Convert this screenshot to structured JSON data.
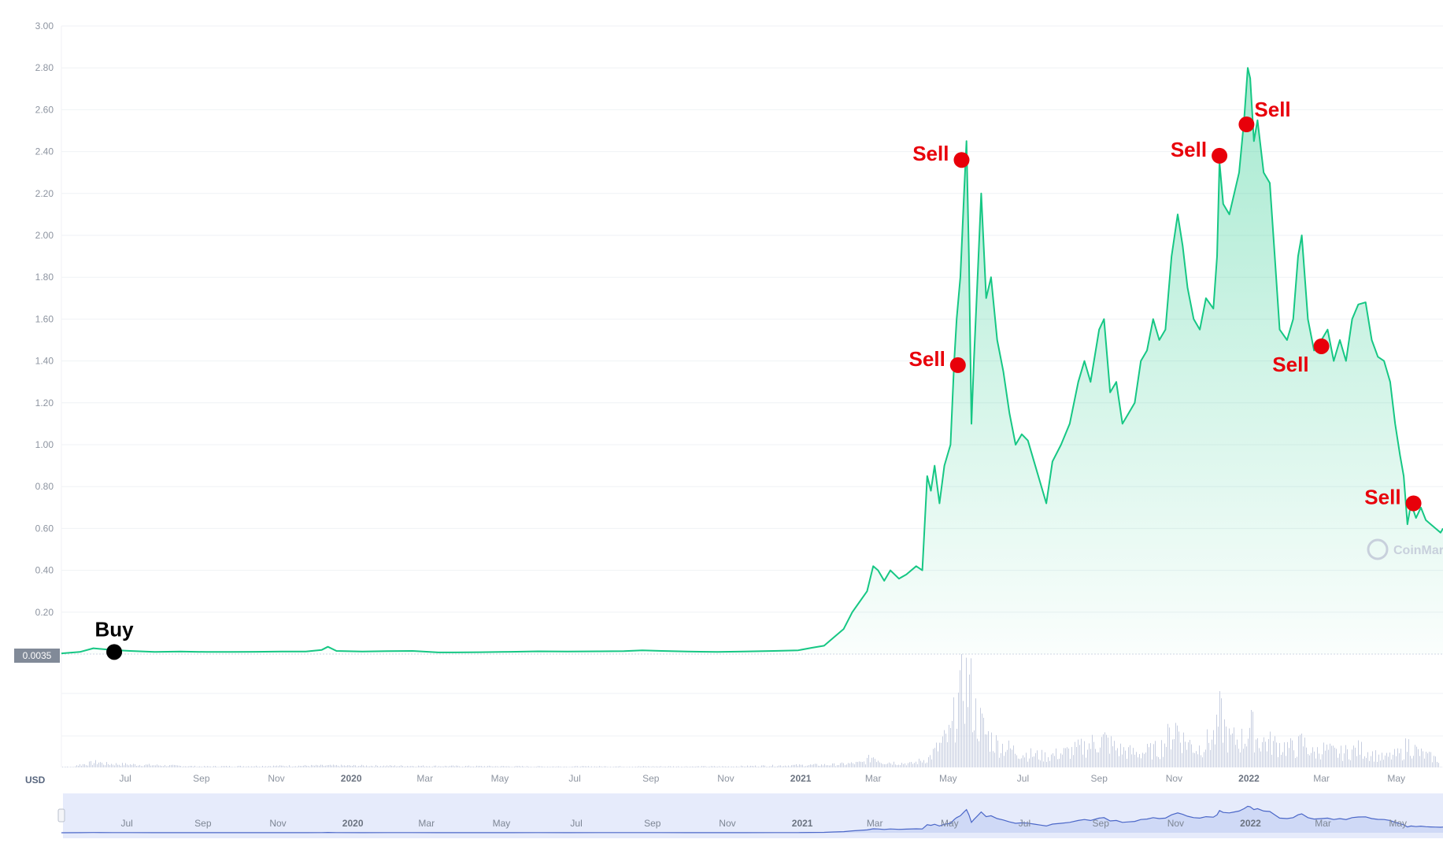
{
  "currency_label": "USD",
  "watermark_text": "CoinMar",
  "current_price_label": "0.0035",
  "colors": {
    "line": "#16c784",
    "area_top": "#16c784",
    "volume": "#c7cee0",
    "grid": "#eff2f5",
    "sell_marker": "#e8000a",
    "buy_marker": "#000000",
    "navigator_fill": "#e6ebfb",
    "navigator_line": "#4b67c8"
  },
  "chart_data": {
    "type": "line",
    "title": "",
    "xlabel": "",
    "ylabel": "",
    "currency": "USD",
    "ylim": [
      0,
      3.0
    ],
    "xlim": [
      "2019-05-10",
      "2022-06-08"
    ],
    "grid": true,
    "yticks": [
      {
        "value": 0.2,
        "label": "0.20"
      },
      {
        "value": 0.4,
        "label": "0.40"
      },
      {
        "value": 0.6,
        "label": "0.60"
      },
      {
        "value": 0.8,
        "label": "0.80"
      },
      {
        "value": 1.0,
        "label": "1.00"
      },
      {
        "value": 1.2,
        "label": "1.20"
      },
      {
        "value": 1.4,
        "label": "1.40"
      },
      {
        "value": 1.6,
        "label": "1.60"
      },
      {
        "value": 1.8,
        "label": "1.80"
      },
      {
        "value": 2.0,
        "label": "2.00"
      },
      {
        "value": 2.2,
        "label": "2.20"
      },
      {
        "value": 2.4,
        "label": "2.40"
      },
      {
        "value": 2.6,
        "label": "2.60"
      },
      {
        "value": 2.8,
        "label": "2.80"
      },
      {
        "value": 3.0,
        "label": "3.00"
      }
    ],
    "xticks": [
      {
        "date": "2019-07-01",
        "label": "Jul",
        "year": false
      },
      {
        "date": "2019-09-01",
        "label": "Sep",
        "year": false
      },
      {
        "date": "2019-11-01",
        "label": "Nov",
        "year": false
      },
      {
        "date": "2020-01-01",
        "label": "2020",
        "year": true
      },
      {
        "date": "2020-03-01",
        "label": "Mar",
        "year": false
      },
      {
        "date": "2020-05-01",
        "label": "May",
        "year": false
      },
      {
        "date": "2020-07-01",
        "label": "Jul",
        "year": false
      },
      {
        "date": "2020-09-01",
        "label": "Sep",
        "year": false
      },
      {
        "date": "2020-11-01",
        "label": "Nov",
        "year": false
      },
      {
        "date": "2021-01-01",
        "label": "2021",
        "year": true
      },
      {
        "date": "2021-03-01",
        "label": "Mar",
        "year": false
      },
      {
        "date": "2021-05-01",
        "label": "May",
        "year": false
      },
      {
        "date": "2021-07-01",
        "label": "Jul",
        "year": false
      },
      {
        "date": "2021-09-01",
        "label": "Sep",
        "year": false
      },
      {
        "date": "2021-11-01",
        "label": "Nov",
        "year": false
      },
      {
        "date": "2022-01-01",
        "label": "2022",
        "year": true
      },
      {
        "date": "2022-03-01",
        "label": "Mar",
        "year": false
      },
      {
        "date": "2022-05-01",
        "label": "May",
        "year": false
      }
    ],
    "series": [
      {
        "points": [
          [
            "2019-05-10",
            0.0035
          ],
          [
            "2019-05-25",
            0.01
          ],
          [
            "2019-06-05",
            0.028
          ],
          [
            "2019-06-20",
            0.02
          ],
          [
            "2019-07-05",
            0.015
          ],
          [
            "2019-07-25",
            0.01
          ],
          [
            "2019-08-15",
            0.012
          ],
          [
            "2019-09-05",
            0.01
          ],
          [
            "2019-09-25",
            0.01
          ],
          [
            "2019-10-15",
            0.011
          ],
          [
            "2019-11-05",
            0.012
          ],
          [
            "2019-11-25",
            0.012
          ],
          [
            "2019-12-08",
            0.02
          ],
          [
            "2019-12-13",
            0.035
          ],
          [
            "2019-12-20",
            0.015
          ],
          [
            "2020-01-10",
            0.012
          ],
          [
            "2020-01-30",
            0.014
          ],
          [
            "2020-02-20",
            0.015
          ],
          [
            "2020-03-12",
            0.008
          ],
          [
            "2020-03-25",
            0.008
          ],
          [
            "2020-04-15",
            0.009
          ],
          [
            "2020-05-10",
            0.011
          ],
          [
            "2020-06-01",
            0.013
          ],
          [
            "2020-06-25",
            0.012
          ],
          [
            "2020-07-20",
            0.013
          ],
          [
            "2020-08-10",
            0.014
          ],
          [
            "2020-08-25",
            0.018
          ],
          [
            "2020-09-10",
            0.015
          ],
          [
            "2020-10-01",
            0.012
          ],
          [
            "2020-10-25",
            0.01
          ],
          [
            "2020-11-15",
            0.012
          ],
          [
            "2020-12-10",
            0.015
          ],
          [
            "2020-12-30",
            0.018
          ],
          [
            "2021-01-10",
            0.03
          ],
          [
            "2021-01-20",
            0.04
          ],
          [
            "2021-01-28",
            0.08
          ],
          [
            "2021-02-05",
            0.12
          ],
          [
            "2021-02-12",
            0.2
          ],
          [
            "2021-02-18",
            0.25
          ],
          [
            "2021-02-24",
            0.3
          ],
          [
            "2021-03-01",
            0.42
          ],
          [
            "2021-03-05",
            0.4
          ],
          [
            "2021-03-10",
            0.35
          ],
          [
            "2021-03-15",
            0.4
          ],
          [
            "2021-03-22",
            0.36
          ],
          [
            "2021-03-28",
            0.38
          ],
          [
            "2021-04-05",
            0.42
          ],
          [
            "2021-04-10",
            0.4
          ],
          [
            "2021-04-14",
            0.85
          ],
          [
            "2021-04-17",
            0.78
          ],
          [
            "2021-04-20",
            0.9
          ],
          [
            "2021-04-24",
            0.72
          ],
          [
            "2021-04-28",
            0.9
          ],
          [
            "2021-05-03",
            1.0
          ],
          [
            "2021-05-06",
            1.4
          ],
          [
            "2021-05-08",
            1.6
          ],
          [
            "2021-05-11",
            1.8
          ],
          [
            "2021-05-14",
            2.2
          ],
          [
            "2021-05-16",
            2.45
          ],
          [
            "2021-05-18",
            1.9
          ],
          [
            "2021-05-20",
            1.1
          ],
          [
            "2021-05-22",
            1.4
          ],
          [
            "2021-05-25",
            1.8
          ],
          [
            "2021-05-28",
            2.2
          ],
          [
            "2021-06-01",
            1.7
          ],
          [
            "2021-06-05",
            1.8
          ],
          [
            "2021-06-10",
            1.5
          ],
          [
            "2021-06-15",
            1.35
          ],
          [
            "2021-06-20",
            1.15
          ],
          [
            "2021-06-25",
            1.0
          ],
          [
            "2021-06-30",
            1.05
          ],
          [
            "2021-07-05",
            1.02
          ],
          [
            "2021-07-10",
            0.92
          ],
          [
            "2021-07-15",
            0.82
          ],
          [
            "2021-07-20",
            0.72
          ],
          [
            "2021-07-25",
            0.92
          ],
          [
            "2021-08-01",
            1.0
          ],
          [
            "2021-08-08",
            1.1
          ],
          [
            "2021-08-15",
            1.3
          ],
          [
            "2021-08-20",
            1.4
          ],
          [
            "2021-08-25",
            1.3
          ],
          [
            "2021-09-01",
            1.55
          ],
          [
            "2021-09-05",
            1.6
          ],
          [
            "2021-09-10",
            1.25
          ],
          [
            "2021-09-15",
            1.3
          ],
          [
            "2021-09-20",
            1.1
          ],
          [
            "2021-09-25",
            1.15
          ],
          [
            "2021-09-30",
            1.2
          ],
          [
            "2021-10-05",
            1.4
          ],
          [
            "2021-10-10",
            1.45
          ],
          [
            "2021-10-15",
            1.6
          ],
          [
            "2021-10-20",
            1.5
          ],
          [
            "2021-10-25",
            1.55
          ],
          [
            "2021-10-30",
            1.9
          ],
          [
            "2021-11-04",
            2.1
          ],
          [
            "2021-11-08",
            1.95
          ],
          [
            "2021-11-12",
            1.75
          ],
          [
            "2021-11-17",
            1.6
          ],
          [
            "2021-11-22",
            1.55
          ],
          [
            "2021-11-27",
            1.7
          ],
          [
            "2021-12-03",
            1.65
          ],
          [
            "2021-12-06",
            1.9
          ],
          [
            "2021-12-08",
            2.35
          ],
          [
            "2021-12-11",
            2.15
          ],
          [
            "2021-12-16",
            2.1
          ],
          [
            "2021-12-20",
            2.2
          ],
          [
            "2021-12-24",
            2.3
          ],
          [
            "2021-12-28",
            2.55
          ],
          [
            "2021-12-31",
            2.8
          ],
          [
            "2022-01-02",
            2.75
          ],
          [
            "2022-01-05",
            2.45
          ],
          [
            "2022-01-08",
            2.55
          ],
          [
            "2022-01-13",
            2.3
          ],
          [
            "2022-01-18",
            2.25
          ],
          [
            "2022-01-22",
            1.9
          ],
          [
            "2022-01-26",
            1.55
          ],
          [
            "2022-02-01",
            1.5
          ],
          [
            "2022-02-06",
            1.6
          ],
          [
            "2022-02-10",
            1.9
          ],
          [
            "2022-02-13",
            2.0
          ],
          [
            "2022-02-18",
            1.6
          ],
          [
            "2022-02-23",
            1.45
          ],
          [
            "2022-03-01",
            1.5
          ],
          [
            "2022-03-06",
            1.55
          ],
          [
            "2022-03-11",
            1.4
          ],
          [
            "2022-03-16",
            1.5
          ],
          [
            "2022-03-21",
            1.4
          ],
          [
            "2022-03-26",
            1.6
          ],
          [
            "2022-03-31",
            1.67
          ],
          [
            "2022-04-06",
            1.68
          ],
          [
            "2022-04-11",
            1.5
          ],
          [
            "2022-04-16",
            1.42
          ],
          [
            "2022-04-21",
            1.4
          ],
          [
            "2022-04-26",
            1.3
          ],
          [
            "2022-04-30",
            1.1
          ],
          [
            "2022-05-04",
            0.95
          ],
          [
            "2022-05-07",
            0.85
          ],
          [
            "2022-05-10",
            0.62
          ],
          [
            "2022-05-13",
            0.72
          ],
          [
            "2022-05-17",
            0.65
          ],
          [
            "2022-05-21",
            0.7
          ],
          [
            "2022-05-25",
            0.64
          ],
          [
            "2022-05-29",
            0.62
          ],
          [
            "2022-06-02",
            0.6
          ],
          [
            "2022-06-06",
            0.58
          ],
          [
            "2022-06-08",
            0.6
          ]
        ]
      }
    ],
    "annotations": [
      {
        "label": "Buy",
        "kind": "buy",
        "date": "2019-06-22",
        "value": 0.01,
        "text_side": "above"
      },
      {
        "label": "Sell",
        "kind": "sell",
        "date": "2021-05-09",
        "value": 1.38,
        "text_side": "left"
      },
      {
        "label": "Sell",
        "kind": "sell",
        "date": "2021-05-12",
        "value": 2.36,
        "text_side": "left"
      },
      {
        "label": "Sell",
        "kind": "sell",
        "date": "2021-12-08",
        "value": 2.38,
        "text_side": "left"
      },
      {
        "label": "Sell",
        "kind": "sell",
        "date": "2021-12-30",
        "value": 2.53,
        "text_side": "right-up"
      },
      {
        "label": "Sell",
        "kind": "sell",
        "date": "2022-03-01",
        "value": 1.47,
        "text_side": "below-left"
      },
      {
        "label": "Sell",
        "kind": "sell",
        "date": "2022-05-15",
        "value": 0.72,
        "text_side": "left"
      }
    ],
    "volume": {
      "description": "volume histogram below price",
      "points": [
        [
          "2019-05-20",
          0.02
        ],
        [
          "2019-06-10",
          0.06
        ],
        [
          "2019-06-12",
          0.04
        ],
        [
          "2019-09-01",
          0.01
        ],
        [
          "2019-12-12",
          0.02
        ],
        [
          "2020-06-01",
          0.01
        ],
        [
          "2020-11-01",
          0.01
        ],
        [
          "2021-01-28",
          0.03
        ],
        [
          "2021-02-20",
          0.05
        ],
        [
          "2021-03-01",
          0.12
        ],
        [
          "2021-03-08",
          0.06
        ],
        [
          "2021-04-01",
          0.04
        ],
        [
          "2021-04-15",
          0.1
        ],
        [
          "2021-04-25",
          0.25
        ],
        [
          "2021-05-03",
          0.35
        ],
        [
          "2021-05-06",
          0.55
        ],
        [
          "2021-05-08",
          0.8
        ],
        [
          "2021-05-10",
          0.65
        ],
        [
          "2021-05-13",
          1.0
        ],
        [
          "2021-05-16",
          0.9
        ],
        [
          "2021-05-19",
          0.85
        ],
        [
          "2021-05-22",
          0.6
        ],
        [
          "2021-05-26",
          0.5
        ],
        [
          "2021-06-01",
          0.35
        ],
        [
          "2021-06-10",
          0.25
        ],
        [
          "2021-06-20",
          0.2
        ],
        [
          "2021-07-01",
          0.15
        ],
        [
          "2021-07-20",
          0.12
        ],
        [
          "2021-08-10",
          0.18
        ],
        [
          "2021-08-25",
          0.25
        ],
        [
          "2021-09-05",
          0.3
        ],
        [
          "2021-09-15",
          0.2
        ],
        [
          "2021-10-01",
          0.15
        ],
        [
          "2021-10-20",
          0.2
        ],
        [
          "2021-11-03",
          0.45
        ],
        [
          "2021-11-08",
          0.3
        ],
        [
          "2021-11-20",
          0.2
        ],
        [
          "2021-12-05",
          0.35
        ],
        [
          "2021-12-08",
          0.55
        ],
        [
          "2021-12-10",
          0.5
        ],
        [
          "2021-12-15",
          0.3
        ],
        [
          "2021-12-28",
          0.3
        ],
        [
          "2022-01-02",
          0.45
        ],
        [
          "2022-01-08",
          0.3
        ],
        [
          "2022-01-22",
          0.25
        ],
        [
          "2022-02-08",
          0.2
        ],
        [
          "2022-02-13",
          0.28
        ],
        [
          "2022-02-22",
          0.15
        ],
        [
          "2022-03-01",
          0.2
        ],
        [
          "2022-03-15",
          0.15
        ],
        [
          "2022-04-01",
          0.2
        ],
        [
          "2022-04-20",
          0.1
        ],
        [
          "2022-05-05",
          0.15
        ],
        [
          "2022-05-10",
          0.25
        ],
        [
          "2022-05-20",
          0.15
        ],
        [
          "2022-06-05",
          0.08
        ]
      ]
    },
    "navigator": {
      "xticks": [
        {
          "date": "2019-07-01",
          "label": "Jul",
          "year": false
        },
        {
          "date": "2019-09-01",
          "label": "Sep",
          "year": false
        },
        {
          "date": "2019-11-01",
          "label": "Nov",
          "year": false
        },
        {
          "date": "2020-01-01",
          "label": "2020",
          "year": true
        },
        {
          "date": "2020-03-01",
          "label": "Mar",
          "year": false
        },
        {
          "date": "2020-05-01",
          "label": "May",
          "year": false
        },
        {
          "date": "2020-07-01",
          "label": "Jul",
          "year": false
        },
        {
          "date": "2020-09-01",
          "label": "Sep",
          "year": false
        },
        {
          "date": "2020-11-01",
          "label": "Nov",
          "year": false
        },
        {
          "date": "2021-01-01",
          "label": "2021",
          "year": true
        },
        {
          "date": "2021-03-01",
          "label": "Mar",
          "year": false
        },
        {
          "date": "2021-05-01",
          "label": "May",
          "year": false
        },
        {
          "date": "2021-07-01",
          "label": "Jul",
          "year": false
        },
        {
          "date": "2021-09-01",
          "label": "Sep",
          "year": false
        },
        {
          "date": "2021-11-01",
          "label": "Nov",
          "year": false
        },
        {
          "date": "2022-01-01",
          "label": "2022",
          "year": true
        },
        {
          "date": "2022-03-01",
          "label": "Mar",
          "year": false
        },
        {
          "date": "2022-05-01",
          "label": "May",
          "year": false
        }
      ]
    }
  }
}
